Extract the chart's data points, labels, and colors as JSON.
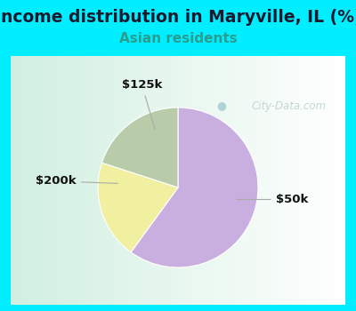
{
  "title": "Income distribution in Maryville, IL (%)",
  "subtitle": "Asian residents",
  "title_fontsize": 13.5,
  "subtitle_fontsize": 11,
  "title_color": "#1a1a2e",
  "subtitle_color": "#2a9d8f",
  "background_color": "#00eeff",
  "chart_bg_from": "#e8f8f0",
  "chart_bg_to": "#f0f8ff",
  "slices": [
    {
      "label": "$50k",
      "value": 60,
      "color": "#c9aee0"
    },
    {
      "label": "$125k",
      "value": 20,
      "color": "#f0f0a0"
    },
    {
      "label": "$200k",
      "value": 20,
      "color": "#b8ccaa"
    }
  ],
  "label_fontsize": 9.5,
  "watermark": "City-Data.com",
  "watermark_color": "#aec6c8"
}
